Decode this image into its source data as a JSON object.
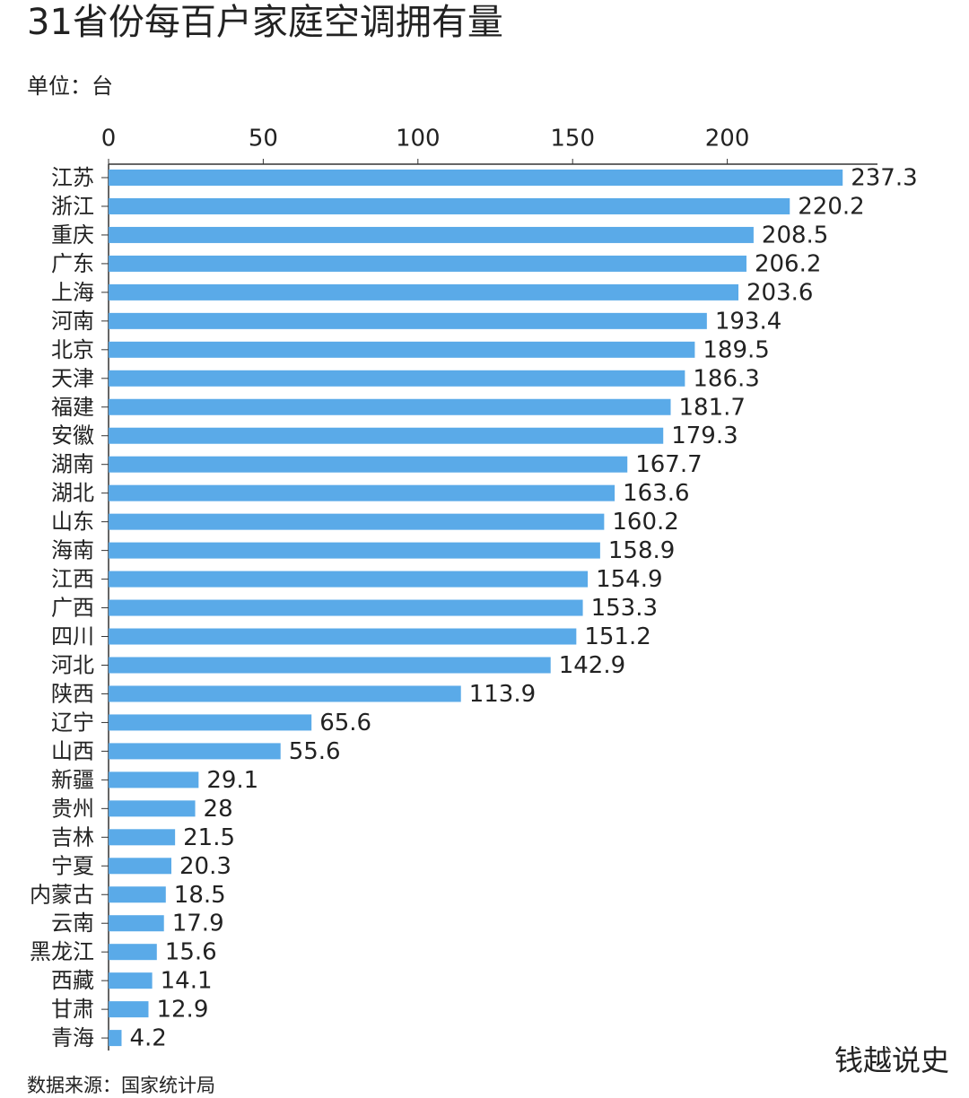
{
  "chart_data": {
    "type": "hbar",
    "title": "31省份每百户家庭空调拥有量",
    "subtitle": "单位：台",
    "source": "数据来源：国家统计局",
    "categories": [
      "江苏",
      "浙江",
      "重庆",
      "广东",
      "上海",
      "河南",
      "北京",
      "天津",
      "福建",
      "安徽",
      "湖南",
      "湖北",
      "山东",
      "海南",
      "江西",
      "广西",
      "四川",
      "河北",
      "陕西",
      "辽宁",
      "山西",
      "新疆",
      "贵州",
      "吉林",
      "宁夏",
      "内蒙古",
      "云南",
      "黑龙江",
      "西藏",
      "甘肃",
      "青海"
    ],
    "values": [
      237.3,
      220.2,
      208.5,
      206.2,
      203.6,
      193.4,
      189.5,
      186.3,
      181.7,
      179.3,
      167.7,
      163.6,
      160.2,
      158.9,
      154.9,
      153.3,
      151.2,
      142.9,
      113.9,
      65.6,
      55.6,
      29.1,
      28,
      21.5,
      20.3,
      18.5,
      17.9,
      15.6,
      14.1,
      12.9,
      4.2
    ],
    "color": "#5aaae8",
    "xlim": [
      0,
      250
    ],
    "xticks": [
      0,
      50,
      100,
      150,
      200
    ]
  },
  "watermark": "钱越说史"
}
